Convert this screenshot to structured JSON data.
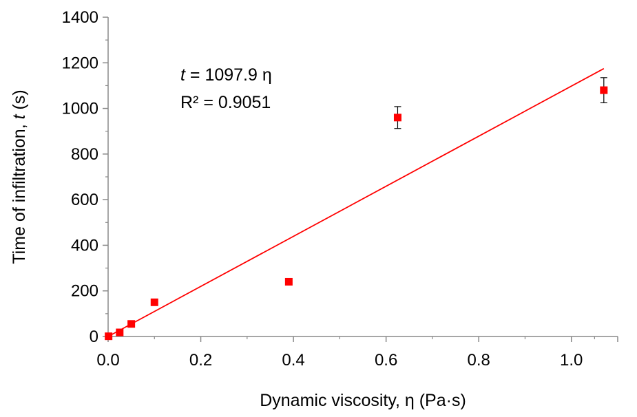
{
  "chart_data": {
    "type": "scatter",
    "xlabel": "Dynamic viscosity, η (Pa·s)",
    "ylabel_prefix": "Time of infiltration, ",
    "ylabel_var": "t",
    "ylabel_suffix": " (s)",
    "xlim": [
      0,
      1.1
    ],
    "ylim": [
      0,
      1400
    ],
    "x_ticks": [
      0.0,
      0.2,
      0.4,
      0.6,
      0.8,
      1.0
    ],
    "x_tick_labels": [
      "0.0",
      "0.2",
      "0.4",
      "0.6",
      "0.8",
      "1.0"
    ],
    "y_ticks": [
      0,
      200,
      400,
      600,
      800,
      1000,
      1200,
      1400
    ],
    "y_tick_labels": [
      "0",
      "200",
      "400",
      "600",
      "800",
      "1000",
      "1200",
      "1400"
    ],
    "grid": false,
    "marker_color": "#ff0000",
    "fit_color": "#ff0000",
    "points": [
      {
        "x": 0.001,
        "y": 1,
        "err": 0
      },
      {
        "x": 0.025,
        "y": 18,
        "err": 0
      },
      {
        "x": 0.05,
        "y": 55,
        "err": 0
      },
      {
        "x": 0.1,
        "y": 150,
        "err": 0
      },
      {
        "x": 0.39,
        "y": 240,
        "err": 0
      },
      {
        "x": 0.625,
        "y": 960,
        "err": 48
      },
      {
        "x": 1.07,
        "y": 1080,
        "err": 55
      }
    ],
    "fit": {
      "slope": 1097.9,
      "x_range": [
        0,
        1.07
      ],
      "equation_var": "t",
      "equation_rest": " = 1097.9 η",
      "r2_label": "R² = 0.9051"
    }
  }
}
